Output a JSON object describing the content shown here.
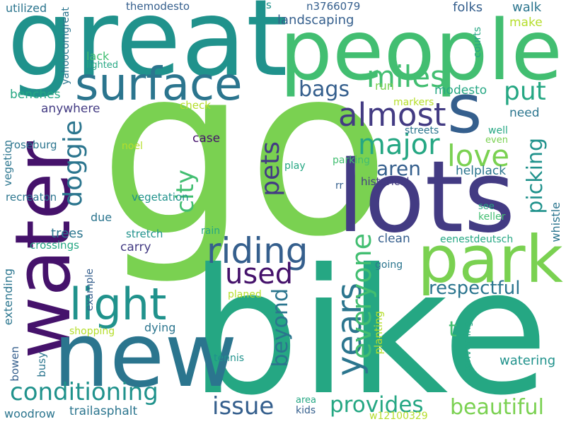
{
  "colors": {
    "background": "#ffffff",
    "purple": "#45126b",
    "indigo": "#433b83",
    "blue": "#355f8d",
    "teal_blue": "#2b758e",
    "teal": "#20928c",
    "sea_green": "#25a783",
    "green": "#42be71",
    "light_green": "#7ad151",
    "lime": "#b5de2b"
  },
  "words": {
    "go": "go",
    "bike": "bike",
    "great": "great",
    "people": "people",
    "lots": "lots",
    "water": "water",
    "new": "new",
    "park": "park",
    "surface": "surface",
    "light": "light",
    "riding": "riding",
    "almost": "almost",
    "s": "s",
    "miles": "miles",
    "major": "major",
    "love": "love",
    "years": "years",
    "conditioning": "conditioning",
    "everyone": "everyone",
    "city": "city",
    "doggie": "doggie",
    "pets": "pets",
    "used": "used",
    "issue": "issue",
    "provides": "provides",
    "beautiful": "beautiful",
    "respectful": "respectful",
    "beyond": "beyond",
    "picking": "picking",
    "aren": "aren",
    "put": "put",
    "bags": "bags",
    "t": "t",
    "landscaping": "landscaping",
    "folks": "folks",
    "walk": "walk",
    "make": "make",
    "utilized": "utilized",
    "themodesto": "themodesto",
    "tis": "tis",
    "n3766079": "n3766079",
    "yahoocomgreat": "yahoocomgreat",
    "lack": "lack",
    "lighted": "lighted",
    "benches": "benches",
    "anywhere": "anywhere",
    "run": "run",
    "modesto": "modesto",
    "markers": "markers",
    "check": "check",
    "need": "need",
    "courts": "courts",
    "streets": "streets",
    "well": "well",
    "even": "even",
    "roseburg": "roseburg",
    "noel": "noel",
    "case": "case",
    "play": "play",
    "parking": "parking",
    "helplack": "helplack",
    "vegetion": "vegetion",
    "recreaton": "recreaton",
    "rr": "rr",
    "historical": "historical",
    "vegetation": "vegetation",
    "see": "see",
    "keller": "keller",
    "whistle": "whistle",
    "due": "due",
    "trees": "trees",
    "stretch": "stretch",
    "rain": "rain",
    "clean": "clean",
    "eenestdeutsch": "eenestdeutsch",
    "crossings": "crossings",
    "carry": "carry",
    "going": "going",
    "extending": "extending",
    "example": "example",
    "planed": "planed",
    "dying": "dying",
    "shopping": "shopping",
    "planting": "planting",
    "converting": "converting",
    "watering": "watering",
    "bowen": "bowen",
    "busy": "busy",
    "tennis": "tennis",
    "area": "area",
    "kids": "kids",
    "woodrow": "woodrow",
    "trailasphalt": "trailasphalt",
    "w12100329": "w12100329"
  }
}
